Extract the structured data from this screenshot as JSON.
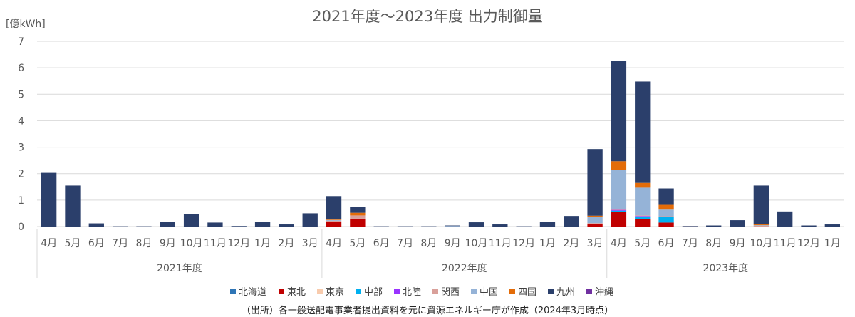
{
  "chart_data": {
    "type": "bar",
    "stacked": true,
    "title": "2021年度～2023年度  出力制御量",
    "ylabel": "[億kWh]",
    "ylim": [
      0,
      7
    ],
    "yticks": [
      "0",
      "1",
      "2",
      "3",
      "4",
      "5",
      "6",
      "7"
    ],
    "grid": true,
    "legend_position": "bottom",
    "source": "（出所）各一般送配電事業者提出資料を元に資源エネルギー庁が作成（2024年3月時点）",
    "categories": [
      "4月",
      "5月",
      "6月",
      "7月",
      "8月",
      "9月",
      "10月",
      "11月",
      "12月",
      "1月",
      "2月",
      "3月",
      "4月",
      "5月",
      "6月",
      "7月",
      "8月",
      "9月",
      "10月",
      "11月",
      "12月",
      "1月",
      "2月",
      "3月",
      "4月",
      "5月",
      "6月",
      "7月",
      "8月",
      "9月",
      "10月",
      "11月",
      "12月",
      "1月"
    ],
    "groups": [
      {
        "label": "2021年度",
        "count": 12
      },
      {
        "label": "2022年度",
        "count": 12
      },
      {
        "label": "2023年度",
        "count": 10
      }
    ],
    "series": [
      {
        "name": "北海道",
        "color": "#2E75B6",
        "values": [
          0,
          0,
          0,
          0,
          0,
          0,
          0,
          0,
          0,
          0,
          0,
          0,
          0,
          0,
          0,
          0,
          0,
          0,
          0,
          0,
          0,
          0,
          0,
          0,
          0,
          0,
          0,
          0,
          0,
          0,
          0,
          0,
          0,
          0
        ]
      },
      {
        "name": "東北",
        "color": "#C00000",
        "values": [
          0,
          0,
          0,
          0,
          0,
          0,
          0,
          0,
          0,
          0,
          0,
          0,
          0.18,
          0.3,
          0,
          0,
          0,
          0,
          0,
          0,
          0,
          0,
          0,
          0.1,
          0.55,
          0.28,
          0.15,
          0,
          0,
          0,
          0,
          0,
          0,
          0
        ]
      },
      {
        "name": "東京",
        "color": "#F8CBAD",
        "values": [
          0,
          0,
          0,
          0,
          0,
          0,
          0,
          0,
          0,
          0,
          0,
          0,
          0,
          0,
          0,
          0,
          0,
          0,
          0,
          0,
          0,
          0,
          0,
          0,
          0,
          0,
          0,
          0,
          0,
          0,
          0,
          0,
          0,
          0
        ]
      },
      {
        "name": "中部",
        "color": "#00B0F0",
        "values": [
          0,
          0,
          0,
          0,
          0,
          0,
          0,
          0,
          0,
          0,
          0,
          0,
          0,
          0,
          0,
          0,
          0,
          0,
          0,
          0,
          0,
          0,
          0,
          0,
          0.05,
          0.1,
          0.2,
          0,
          0,
          0,
          0,
          0,
          0,
          0
        ]
      },
      {
        "name": "北陸",
        "color": "#9933FF",
        "values": [
          0,
          0,
          0,
          0,
          0,
          0,
          0,
          0,
          0,
          0,
          0,
          0,
          0,
          0,
          0,
          0,
          0,
          0,
          0,
          0,
          0,
          0,
          0,
          0,
          0.03,
          0.02,
          0.02,
          0,
          0,
          0,
          0,
          0,
          0,
          0
        ]
      },
      {
        "name": "関西",
        "color": "#D9A09A",
        "values": [
          0,
          0,
          0,
          0,
          0,
          0,
          0,
          0,
          0,
          0,
          0,
          0,
          0.04,
          0.12,
          0,
          0,
          0,
          0,
          0,
          0,
          0,
          0,
          0,
          0.03,
          0.03,
          0.02,
          0.02,
          0.01,
          0,
          0,
          0.03,
          0,
          0,
          0
        ]
      },
      {
        "name": "中国",
        "color": "#95B3D7",
        "values": [
          0,
          0,
          0,
          0,
          0,
          0,
          0,
          0,
          0,
          0,
          0,
          0,
          0.03,
          0,
          0,
          0,
          0,
          0.02,
          0,
          0,
          0,
          0,
          0,
          0.23,
          1.48,
          1.05,
          0.25,
          0,
          0,
          0,
          0.02,
          0,
          0,
          0
        ]
      },
      {
        "name": "四国",
        "color": "#E36C09",
        "values": [
          0,
          0,
          0,
          0,
          0,
          0,
          0,
          0,
          0,
          0,
          0,
          0,
          0.04,
          0.1,
          0,
          0,
          0,
          0,
          0,
          0,
          0,
          0,
          0,
          0.05,
          0.33,
          0.18,
          0.18,
          0,
          0,
          0,
          0.03,
          0,
          0,
          0
        ]
      },
      {
        "name": "九州",
        "color": "#2B3F6B",
        "values": [
          2.03,
          1.55,
          0.12,
          0.01,
          0.01,
          0.18,
          0.47,
          0.15,
          0.02,
          0.18,
          0.08,
          0.5,
          0.86,
          0.21,
          0.01,
          0.01,
          0.01,
          0.02,
          0.16,
          0.08,
          0.01,
          0.18,
          0.4,
          2.52,
          3.8,
          3.83,
          0.62,
          0.01,
          0.04,
          0.24,
          1.47,
          0.57,
          0.04,
          0.08
        ]
      },
      {
        "name": "沖縄",
        "color": "#7030A0",
        "values": [
          0,
          0,
          0,
          0,
          0,
          0,
          0,
          0,
          0,
          0,
          0,
          0,
          0,
          0,
          0,
          0,
          0,
          0,
          0,
          0,
          0,
          0,
          0,
          0,
          0,
          0,
          0,
          0,
          0,
          0,
          0,
          0,
          0,
          0
        ]
      }
    ]
  }
}
